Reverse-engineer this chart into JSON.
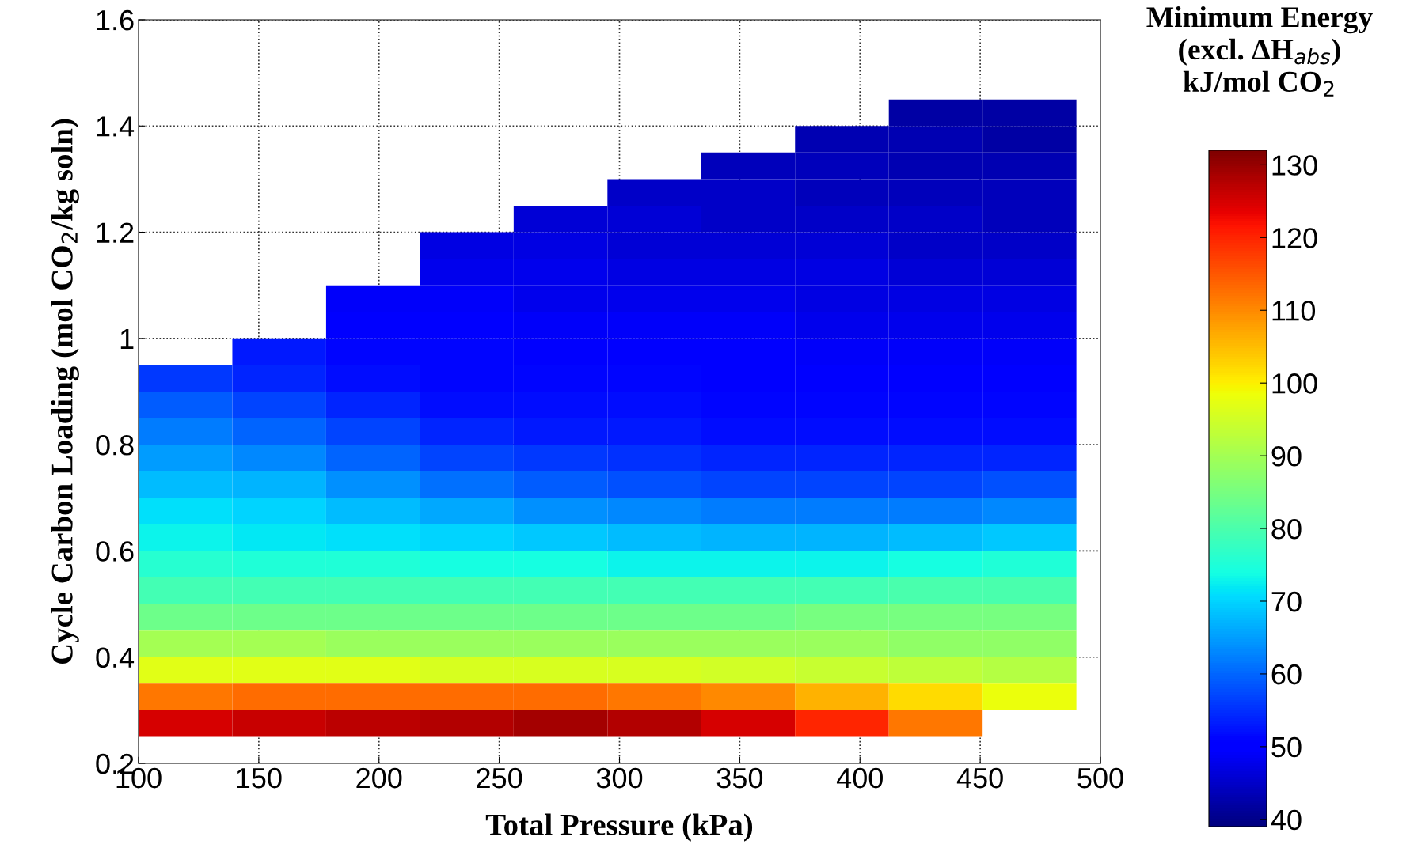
{
  "chart_data": {
    "type": "heatmap",
    "xlabel": "Total Pressure (kPa)",
    "ylabel": "Cycle Carbon Loading (mol CO$_{2}$/kg soln)",
    "clabel": "Minimum Energy\n(excl. ΔH$_{abs}$)\nkJ/mol CO$_{2}$",
    "x": [
      119.5,
      158.5,
      197.5,
      236.5,
      275.5,
      314.5,
      353.5,
      392.5,
      431.5,
      470.5
    ],
    "y": [
      1.425,
      1.375,
      1.325,
      1.275,
      1.225,
      1.175,
      1.125,
      1.075,
      1.025,
      0.975,
      0.925,
      0.875,
      0.825,
      0.775,
      0.725,
      0.675,
      0.625,
      0.575,
      0.525,
      0.475,
      0.425,
      0.375,
      0.325,
      0.275
    ],
    "cells": [
      [
        null,
        null,
        null,
        null,
        null,
        null,
        null,
        null,
        42,
        42
      ],
      [
        null,
        null,
        null,
        null,
        null,
        null,
        null,
        43,
        43,
        42
      ],
      [
        null,
        null,
        null,
        null,
        null,
        null,
        44,
        44,
        43,
        43
      ],
      [
        null,
        null,
        null,
        null,
        null,
        45,
        45,
        44,
        44,
        44
      ],
      [
        null,
        null,
        null,
        null,
        46,
        46,
        45,
        45,
        45,
        44
      ],
      [
        null,
        null,
        null,
        47,
        47,
        46,
        46,
        46,
        45,
        45
      ],
      [
        null,
        null,
        null,
        48,
        48,
        47,
        47,
        47,
        46,
        46
      ],
      [
        null,
        null,
        49,
        49,
        48,
        48,
        48,
        47,
        47,
        47
      ],
      [
        null,
        null,
        50,
        50,
        49,
        49,
        49,
        48,
        48,
        48
      ],
      [
        null,
        53,
        51,
        51,
        50,
        50,
        50,
        49,
        49,
        49
      ],
      [
        56,
        54,
        52,
        51,
        51,
        51,
        50,
        50,
        50,
        50
      ],
      [
        59,
        57,
        54,
        52,
        52,
        52,
        51,
        51,
        51,
        51
      ],
      [
        62,
        60,
        57,
        54,
        53,
        53,
        52,
        52,
        52,
        52
      ],
      [
        65,
        63,
        60,
        57,
        56,
        55,
        54,
        54,
        54,
        54
      ],
      [
        68,
        67,
        64,
        61,
        59,
        58,
        57,
        57,
        57,
        58
      ],
      [
        71,
        70,
        68,
        66,
        64,
        63,
        62,
        62,
        62,
        63
      ],
      [
        73,
        72,
        71,
        70,
        69,
        68,
        67,
        67,
        68,
        69
      ],
      [
        76,
        75,
        75,
        74,
        74,
        73,
        73,
        73,
        74,
        75
      ],
      [
        79,
        79,
        79,
        79,
        79,
        79,
        79,
        79,
        80,
        80
      ],
      [
        84,
        84,
        84,
        84,
        84,
        84,
        84,
        85,
        85,
        85
      ],
      [
        90,
        90,
        89,
        89,
        89,
        89,
        89,
        89,
        88,
        88
      ],
      [
        97,
        97,
        97,
        96,
        96,
        96,
        95,
        94,
        93,
        92
      ],
      [
        112,
        113,
        113,
        113,
        113,
        112,
        110,
        106,
        102,
        98
      ],
      [
        125,
        126,
        127,
        128,
        129,
        128,
        125,
        120,
        112,
        null
      ]
    ],
    "clim": [
      39,
      132
    ],
    "cticks": [
      40,
      50,
      60,
      70,
      80,
      90,
      100,
      110,
      120,
      130
    ],
    "xlim": [
      100,
      500
    ],
    "ylim": [
      0.2,
      1.6
    ],
    "xticks": [
      100,
      150,
      200,
      250,
      300,
      350,
      400,
      450,
      500
    ],
    "yticks": [
      0.2,
      0.4,
      0.6,
      0.8,
      1,
      1.2,
      1.4,
      1.6
    ],
    "grid": true
  }
}
